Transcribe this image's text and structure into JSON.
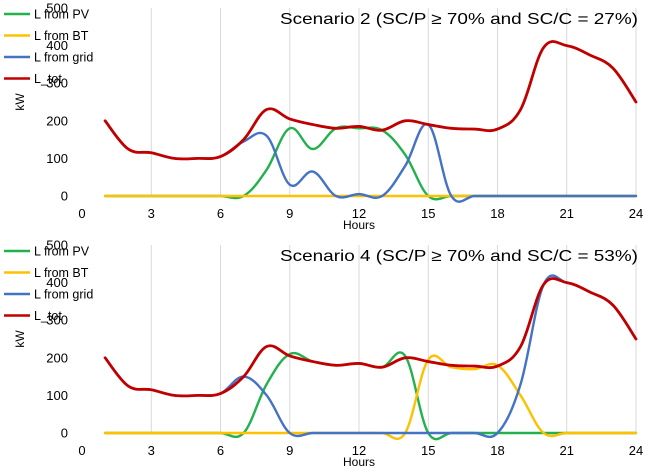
{
  "chart_data": [
    {
      "type": "line",
      "title": "Scenario 2 (SC/P ≥ 70% and SC/C = 27%)",
      "xlabel": "Hours",
      "ylabel": "kW",
      "xlim": [
        0,
        24
      ],
      "ylim": [
        0,
        500
      ],
      "xticks": [
        "0",
        "3",
        "6",
        "9",
        "12",
        "15",
        "18",
        "21",
        "24"
      ],
      "yticks": [
        "0",
        "100",
        "200",
        "300",
        "400",
        "500"
      ],
      "grid": "vertical",
      "legend_position": "top-left",
      "series": [
        {
          "name": "L from PV",
          "color": "#22b14c",
          "x": [
            1,
            2,
            3,
            4,
            5,
            6,
            7,
            8,
            9,
            10,
            11,
            12,
            13,
            14,
            15,
            16,
            17,
            18,
            19,
            20,
            21,
            22,
            23,
            24
          ],
          "y": [
            0,
            0,
            0,
            0,
            0,
            0,
            0,
            70,
            180,
            125,
            180,
            180,
            175,
            110,
            0,
            0,
            0,
            0,
            0,
            0,
            0,
            0,
            0,
            0
          ]
        },
        {
          "name": "L from BT",
          "color": "#ffc000",
          "x": [
            1,
            2,
            3,
            4,
            5,
            6,
            7,
            8,
            9,
            10,
            11,
            12,
            13,
            14,
            15,
            16,
            17,
            18,
            19,
            20,
            21,
            22,
            23,
            24
          ],
          "y": [
            0,
            0,
            0,
            0,
            0,
            0,
            0,
            0,
            0,
            0,
            0,
            0,
            0,
            0,
            0,
            0,
            0,
            0,
            0,
            0,
            0,
            0,
            0,
            0
          ]
        },
        {
          "name": "L from grid",
          "color": "#4472c4",
          "x": [
            1,
            2,
            3,
            4,
            5,
            6,
            7,
            8,
            9,
            10,
            11,
            12,
            13,
            14,
            15,
            16,
            17,
            18,
            19,
            20,
            21,
            22,
            23,
            24
          ],
          "y": [
            200,
            125,
            115,
            100,
            100,
            105,
            145,
            160,
            30,
            65,
            0,
            5,
            0,
            80,
            190,
            0,
            0,
            0,
            0,
            0,
            0,
            0,
            0,
            0
          ]
        },
        {
          "name": "L_tot",
          "color": "#c00000",
          "x": [
            1,
            2,
            3,
            4,
            5,
            6,
            7,
            8,
            9,
            10,
            11,
            12,
            13,
            14,
            15,
            16,
            17,
            18,
            19,
            20,
            21,
            22,
            23,
            24
          ],
          "y": [
            200,
            125,
            115,
            100,
            100,
            105,
            150,
            230,
            205,
            190,
            180,
            185,
            175,
            200,
            190,
            180,
            178,
            178,
            230,
            395,
            400,
            375,
            340,
            250
          ]
        }
      ]
    },
    {
      "type": "line",
      "title": "Scenario 4 (SC/P ≥ 70% and SC/C = 53%)",
      "xlabel": "Hours",
      "ylabel": "kW",
      "xlim": [
        0,
        24
      ],
      "ylim": [
        0,
        500
      ],
      "xticks": [
        "0",
        "3",
        "6",
        "9",
        "12",
        "15",
        "18",
        "21",
        "24"
      ],
      "yticks": [
        "0",
        "100",
        "200",
        "300",
        "400",
        "500"
      ],
      "grid": "vertical",
      "legend_position": "top-left",
      "series": [
        {
          "name": "L from PV",
          "color": "#22b14c",
          "x": [
            1,
            2,
            3,
            4,
            5,
            6,
            7,
            8,
            9,
            10,
            11,
            12,
            13,
            14,
            15,
            16,
            17,
            18,
            19,
            20,
            21,
            22,
            23,
            24
          ],
          "y": [
            0,
            0,
            0,
            0,
            0,
            0,
            0,
            130,
            210,
            190,
            180,
            185,
            175,
            205,
            0,
            0,
            0,
            0,
            0,
            0,
            0,
            0,
            0,
            0
          ]
        },
        {
          "name": "L from BT",
          "color": "#ffc000",
          "x": [
            1,
            2,
            3,
            4,
            5,
            6,
            7,
            8,
            9,
            10,
            11,
            12,
            13,
            14,
            15,
            16,
            17,
            18,
            19,
            20,
            21,
            22,
            23,
            24
          ],
          "y": [
            0,
            0,
            0,
            0,
            0,
            0,
            0,
            0,
            0,
            0,
            0,
            0,
            0,
            0,
            195,
            175,
            170,
            180,
            100,
            0,
            0,
            0,
            0,
            0
          ]
        },
        {
          "name": "L from grid",
          "color": "#4472c4",
          "x": [
            1,
            2,
            3,
            4,
            5,
            6,
            7,
            8,
            9,
            10,
            11,
            12,
            13,
            14,
            15,
            16,
            17,
            18,
            19,
            20,
            21,
            22,
            23,
            24
          ],
          "y": [
            200,
            125,
            115,
            100,
            100,
            105,
            150,
            100,
            0,
            0,
            0,
            0,
            0,
            0,
            0,
            0,
            0,
            0,
            130,
            395,
            400,
            375,
            340,
            250
          ]
        },
        {
          "name": "L_tot",
          "color": "#c00000",
          "x": [
            1,
            2,
            3,
            4,
            5,
            6,
            7,
            8,
            9,
            10,
            11,
            12,
            13,
            14,
            15,
            16,
            17,
            18,
            19,
            20,
            21,
            22,
            23,
            24
          ],
          "y": [
            200,
            125,
            115,
            100,
            100,
            105,
            150,
            230,
            205,
            190,
            180,
            185,
            175,
            200,
            190,
            180,
            178,
            178,
            230,
            395,
            400,
            375,
            340,
            250
          ]
        }
      ]
    }
  ]
}
